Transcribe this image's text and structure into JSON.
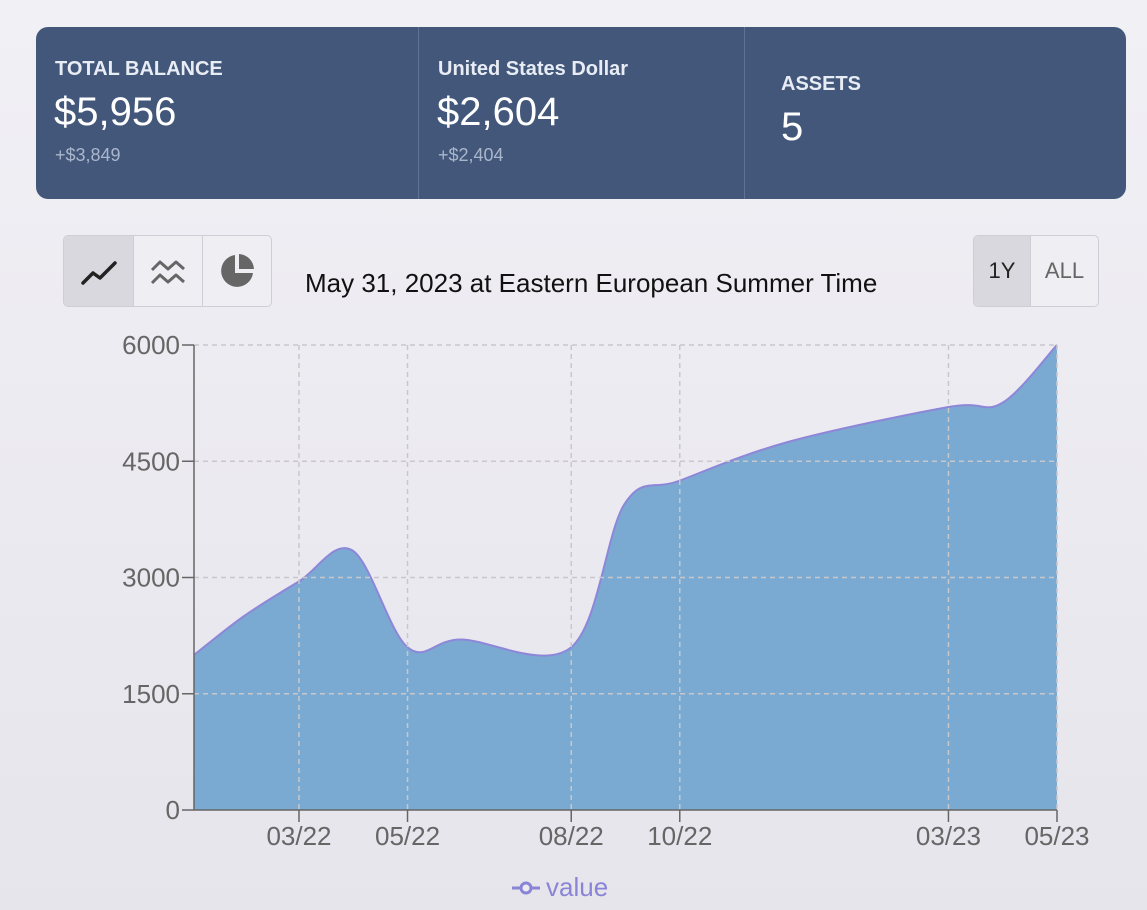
{
  "summary": {
    "total": {
      "label": "TOTAL BALANCE",
      "value": "$5,956",
      "delta": "+$3,849"
    },
    "usd": {
      "label": "United States Dollar",
      "value": "$2,604",
      "delta": "+$2,404"
    },
    "assets": {
      "label": "ASSETS",
      "value": "5"
    }
  },
  "controls": {
    "chart_types": [
      {
        "icon": "line-chart-icon",
        "active": true
      },
      {
        "icon": "multi-line-chart-icon",
        "active": false
      },
      {
        "icon": "pie-chart-icon",
        "active": false
      }
    ],
    "ranges": [
      {
        "label": "1Y",
        "active": true
      },
      {
        "label": "ALL",
        "active": false
      }
    ]
  },
  "colors": {
    "area_fill": "#7aaad1",
    "line": "#8e86d8",
    "grid": "#c8c8cc",
    "axis": "#666666"
  },
  "chart_data": {
    "type": "area",
    "title": "May 31, 2023 at Eastern European Summer Time",
    "xlabel": "",
    "ylabel": "",
    "xlim": [
      "2022-01-31",
      "2023-05-31"
    ],
    "ylim": [
      0,
      6000
    ],
    "yticks": [
      0,
      1500,
      3000,
      4500,
      6000
    ],
    "xticks": [
      {
        "date": "2022-03-31",
        "label": "03/22"
      },
      {
        "date": "2022-05-31",
        "label": "05/22"
      },
      {
        "date": "2022-08-31",
        "label": "08/22"
      },
      {
        "date": "2022-10-31",
        "label": "10/22"
      },
      {
        "date": "2023-03-31",
        "label": "03/23"
      },
      {
        "date": "2023-05-31",
        "label": "05/23"
      }
    ],
    "grid": true,
    "legend": "bottom",
    "series": [
      {
        "name": "value",
        "points": [
          {
            "x": "2022-01-31",
            "y": 2000
          },
          {
            "x": "2022-02-28",
            "y": 2500
          },
          {
            "x": "2022-03-31",
            "y": 2950
          },
          {
            "x": "2022-04-30",
            "y": 3350
          },
          {
            "x": "2022-05-31",
            "y": 2100
          },
          {
            "x": "2022-06-30",
            "y": 2200
          },
          {
            "x": "2022-08-31",
            "y": 2100
          },
          {
            "x": "2022-09-30",
            "y": 3950
          },
          {
            "x": "2022-10-31",
            "y": 4250
          },
          {
            "x": "2022-12-31",
            "y": 4750
          },
          {
            "x": "2023-03-31",
            "y": 5200
          },
          {
            "x": "2023-04-30",
            "y": 5250
          },
          {
            "x": "2023-05-31",
            "y": 6000
          }
        ]
      }
    ]
  }
}
